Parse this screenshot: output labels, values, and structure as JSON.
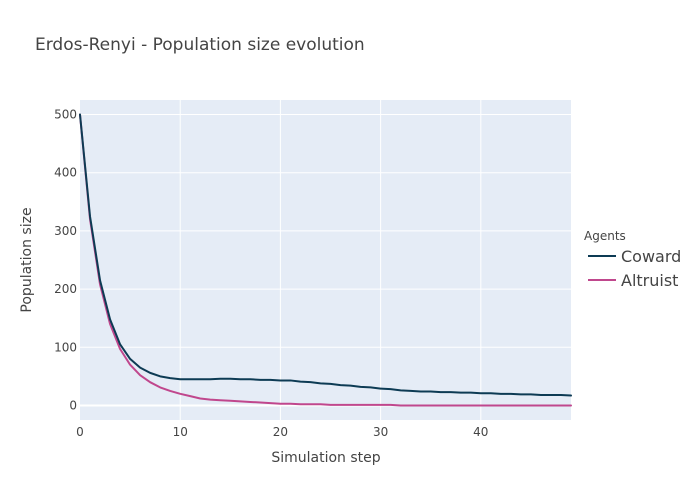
{
  "chart_data": {
    "type": "line",
    "title": "Erdos-Renyi - Population size evolution",
    "xlabel": "Simulation step",
    "ylabel": "Population size",
    "xlim": [
      0,
      49
    ],
    "ylim": [
      -25,
      525
    ],
    "xticks": [
      0,
      10,
      20,
      30,
      40
    ],
    "yticks": [
      0,
      100,
      200,
      300,
      400,
      500
    ],
    "grid": true,
    "legend": {
      "title": "Agents",
      "position": "right"
    },
    "x": [
      0,
      1,
      2,
      3,
      4,
      5,
      6,
      7,
      8,
      9,
      10,
      11,
      12,
      13,
      14,
      15,
      16,
      17,
      18,
      19,
      20,
      21,
      22,
      23,
      24,
      25,
      26,
      27,
      28,
      29,
      30,
      31,
      32,
      33,
      34,
      35,
      36,
      37,
      38,
      39,
      40,
      41,
      42,
      43,
      44,
      45,
      46,
      47,
      48,
      49
    ],
    "series": [
      {
        "name": "Coward",
        "color": "#0d3b54",
        "values": [
          500,
          325,
          215,
          148,
          105,
          80,
          65,
          56,
          50,
          47,
          45,
          45,
          45,
          45,
          46,
          46,
          45,
          45,
          44,
          44,
          43,
          43,
          41,
          40,
          38,
          37,
          35,
          34,
          32,
          31,
          29,
          28,
          26,
          25,
          24,
          24,
          23,
          23,
          22,
          22,
          21,
          21,
          20,
          20,
          19,
          19,
          18,
          18,
          18,
          17
        ]
      },
      {
        "name": "Altruist",
        "color": "#c0478d",
        "values": [
          500,
          320,
          208,
          140,
          97,
          70,
          52,
          40,
          31,
          25,
          20,
          16,
          12,
          10,
          9,
          8,
          7,
          6,
          5,
          4,
          3,
          3,
          2,
          2,
          2,
          1,
          1,
          1,
          1,
          1,
          1,
          1,
          0,
          0,
          0,
          0,
          0,
          0,
          0,
          0,
          0,
          0,
          0,
          0,
          0,
          0,
          0,
          0,
          0,
          0
        ]
      }
    ]
  }
}
